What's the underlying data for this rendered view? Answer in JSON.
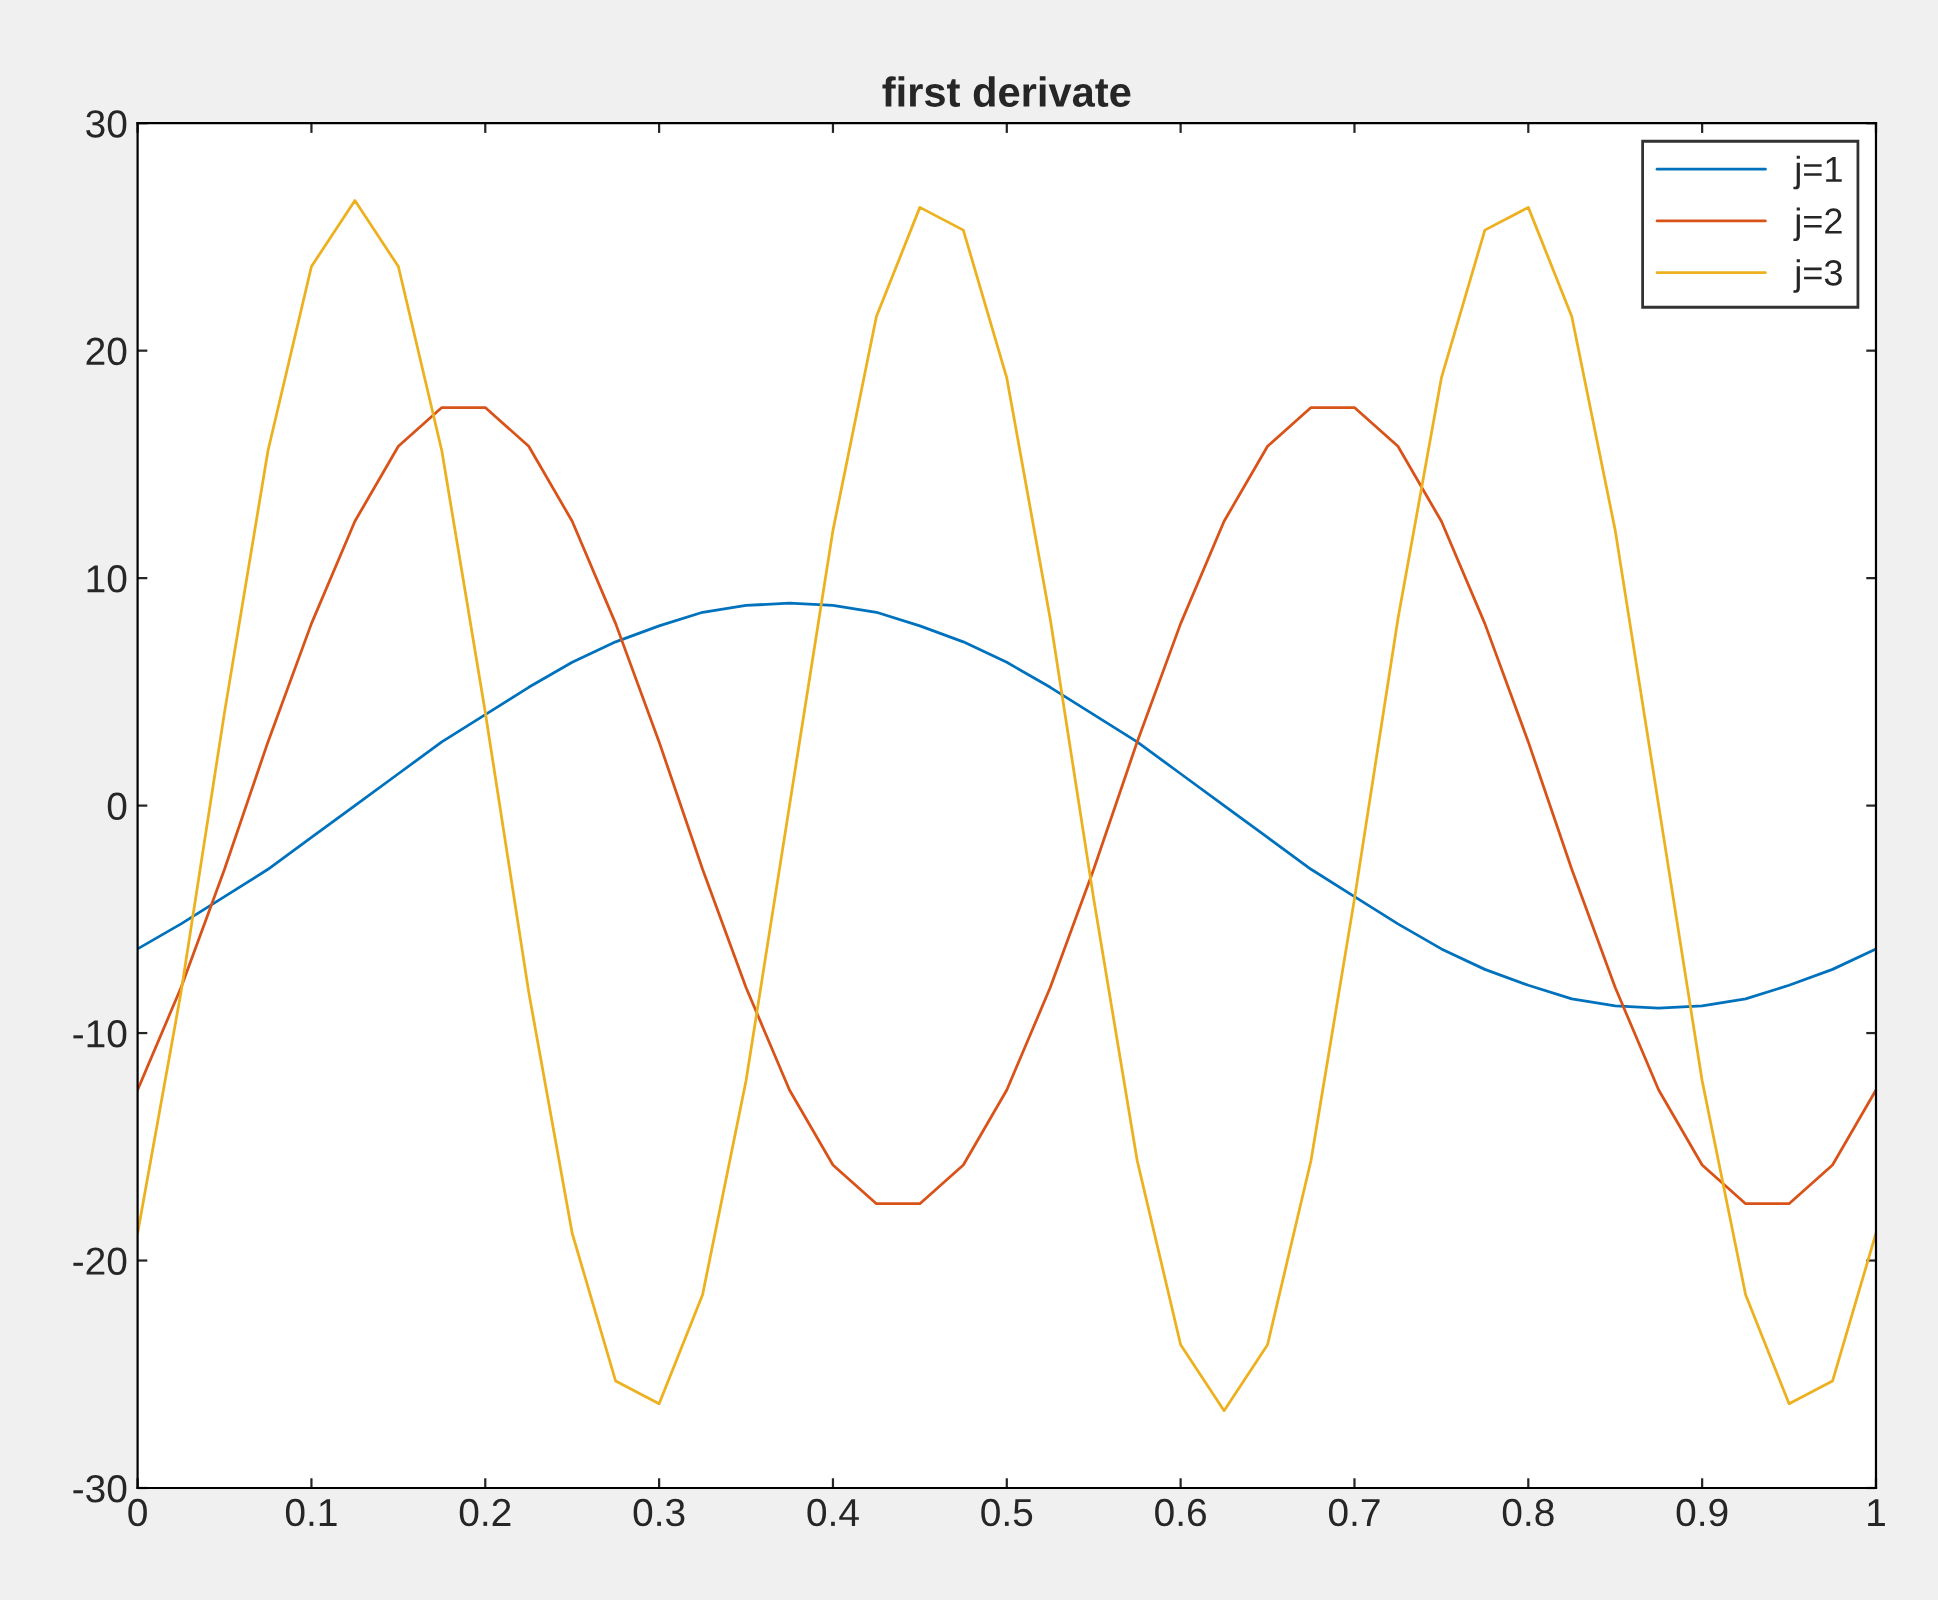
{
  "chart_data": {
    "type": "line",
    "title": "first derivate",
    "x": [
      0,
      0.025,
      0.05,
      0.075,
      0.1,
      0.125,
      0.15,
      0.175,
      0.2,
      0.225,
      0.25,
      0.275,
      0.3,
      0.325,
      0.35,
      0.375,
      0.4,
      0.425,
      0.45,
      0.475,
      0.5,
      0.525,
      0.55,
      0.575,
      0.6,
      0.625,
      0.65,
      0.675,
      0.7,
      0.725,
      0.75,
      0.775,
      0.8,
      0.825,
      0.85,
      0.875,
      0.9,
      0.925,
      0.95,
      0.975,
      1
    ],
    "series": [
      {
        "name": "j=1",
        "color": "#0072bd",
        "values": [
          -6.3,
          -5.2,
          -4.0,
          -2.8,
          -1.4,
          0,
          1.4,
          2.8,
          4.0,
          5.2,
          6.3,
          7.2,
          7.9,
          8.5,
          8.8,
          8.9,
          8.8,
          8.5,
          7.9,
          7.2,
          6.3,
          5.2,
          4.0,
          2.8,
          1.4,
          0,
          -1.4,
          -2.8,
          -4.0,
          -5.2,
          -6.3,
          -7.2,
          -7.9,
          -8.5,
          -8.8,
          -8.9,
          -8.8,
          -8.5,
          -7.9,
          -7.2,
          -6.3
        ]
      },
      {
        "name": "j=2",
        "color": "#d95319",
        "values": [
          -12.5,
          -8.0,
          -2.8,
          2.8,
          8.0,
          12.5,
          15.8,
          17.5,
          17.5,
          15.8,
          12.5,
          8.0,
          2.8,
          -2.8,
          -8.0,
          -12.5,
          -15.8,
          -17.5,
          -17.5,
          -15.8,
          -12.5,
          -8.0,
          -2.8,
          2.8,
          8.0,
          12.5,
          15.8,
          17.5,
          17.5,
          15.8,
          12.5,
          8.0,
          2.8,
          -2.8,
          -8.0,
          -12.5,
          -15.8,
          -17.5,
          -17.5,
          -15.8,
          -12.5
        ]
      },
      {
        "name": "j=3",
        "color": "#edb120",
        "values": [
          -18.8,
          -8.2,
          4.1,
          15.6,
          23.7,
          26.6,
          23.7,
          15.6,
          4.1,
          -8.2,
          -18.8,
          -25.3,
          -26.3,
          -21.5,
          -12.1,
          0,
          12.1,
          21.5,
          26.3,
          25.3,
          18.8,
          8.2,
          -4.1,
          -15.6,
          -23.7,
          -26.6,
          -23.7,
          -15.6,
          -4.1,
          8.2,
          18.8,
          25.3,
          26.3,
          21.5,
          12.1,
          0,
          -12.1,
          -21.5,
          -26.3,
          -25.3,
          -18.8
        ]
      }
    ],
    "xlim": [
      0,
      1
    ],
    "ylim": [
      -30,
      30
    ],
    "xticks": [
      0,
      0.1,
      0.2,
      0.3,
      0.4,
      0.5,
      0.6,
      0.7,
      0.8,
      0.9,
      1
    ],
    "yticks": [
      -30,
      -20,
      -10,
      0,
      10,
      20,
      30
    ],
    "legend": "top right",
    "grid": false
  }
}
